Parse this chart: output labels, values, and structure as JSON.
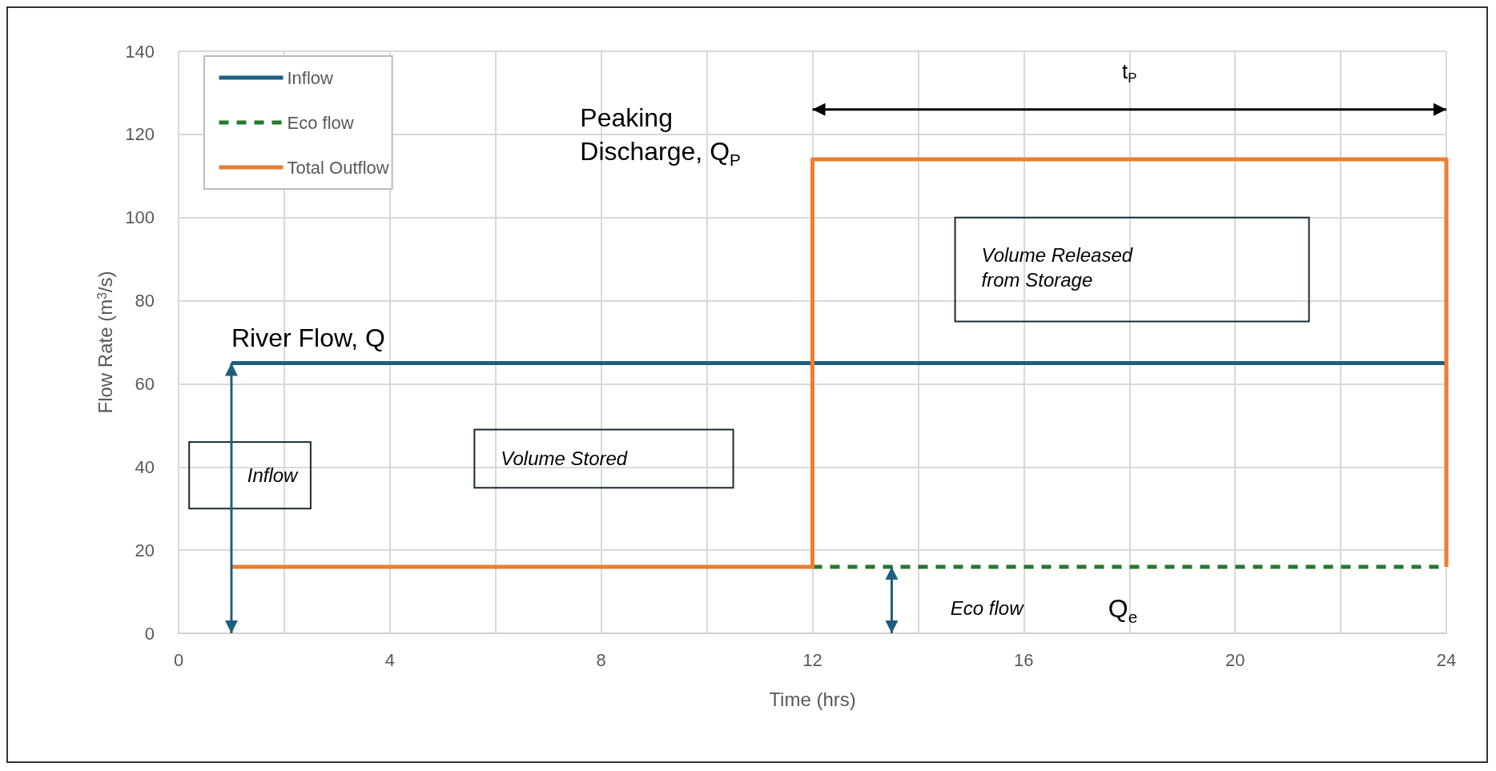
{
  "chart_data": {
    "type": "line",
    "xlabel": "Time (hrs)",
    "ylabel": "Flow Rate (m$^{3}$/s)",
    "xlim": [
      0,
      24
    ],
    "xticks": [
      0,
      {
        "value": 2,
        "label": null
      },
      4,
      {
        "value": 6,
        "label": null
      },
      8,
      {
        "value": 10,
        "label": null
      },
      12,
      {
        "value": 14,
        "label": null
      },
      16,
      {
        "value": 18,
        "label": null
      },
      20,
      {
        "value": 22,
        "label": null
      },
      24
    ],
    "ylim": [
      0,
      140
    ],
    "yticks": [
      0,
      20,
      40,
      60,
      80,
      100,
      120,
      140
    ],
    "grid": true,
    "legend": "top left",
    "marker": "none",
    "series": [
      {
        "name": "Inflow",
        "color": "#1f5f7e",
        "x": [
          1,
          24
        ],
        "values": [
          65,
          65
        ],
        "line_style": "solid"
      },
      {
        "name": "Eco flow",
        "color": "#237a2a",
        "x": [
          12,
          24
        ],
        "values": [
          16,
          16
        ],
        "line_style": "dashed"
      },
      {
        "name": "Total Outflow",
        "color": "#ed7d31",
        "x": [
          1,
          12,
          12,
          24,
          24
        ],
        "values": [
          16,
          16,
          114,
          114,
          16
        ],
        "line_style": "solid"
      }
    ],
    "annotations": [
      "Peaking Discharge, Q$_{P}$",
      "River Flow, Q",
      "Volume Released from Storage",
      "Volume Stored",
      "Inflow",
      "Eco flow",
      "Q$_{e}$",
      "t$_{P}$"
    ]
  }
}
